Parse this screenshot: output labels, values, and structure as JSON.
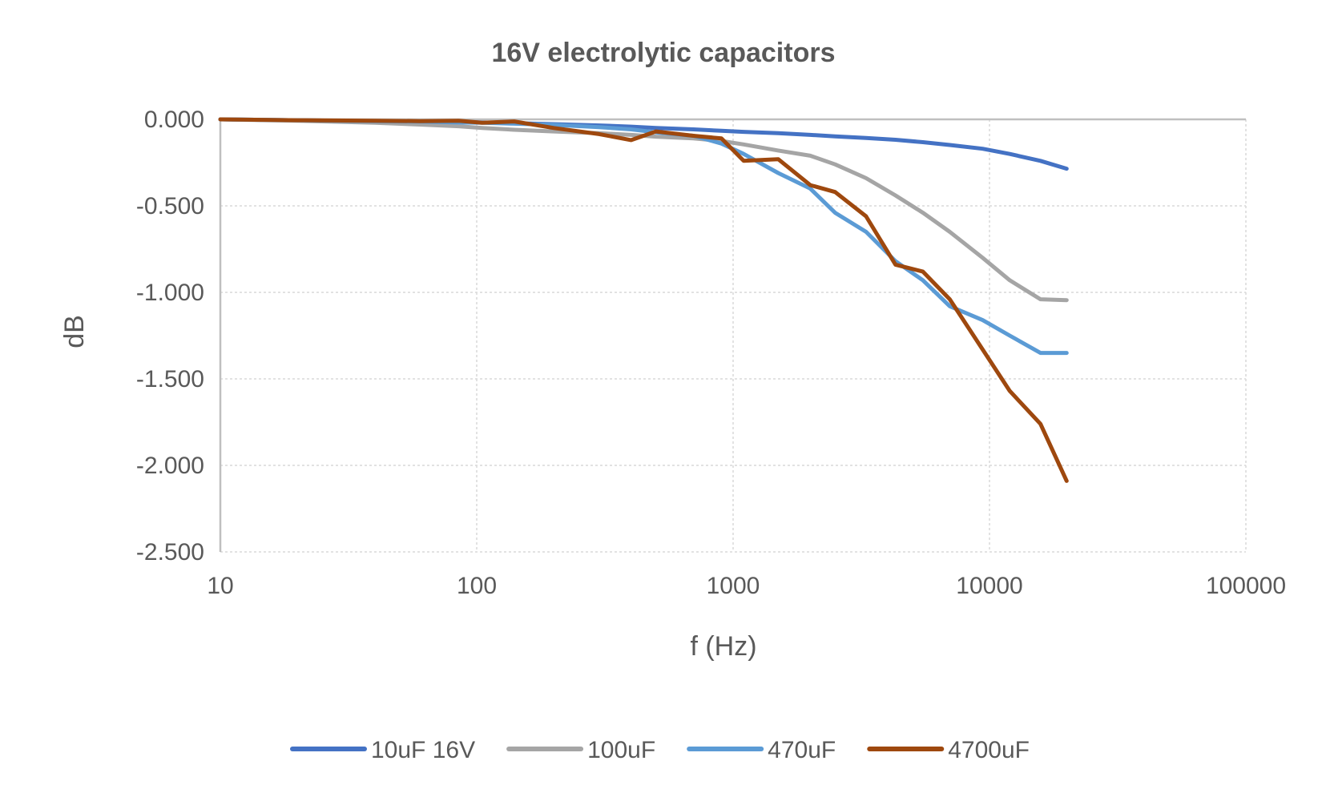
{
  "chart_data": {
    "type": "line",
    "title": "16V electrolytic capacitors",
    "xlabel": "f (Hz)",
    "ylabel": "dB",
    "x_scale": "log",
    "xlim": [
      10,
      100000
    ],
    "ylim": [
      -2.5,
      0
    ],
    "x_ticks": [
      "10",
      "100",
      "1000",
      "10000",
      "100000"
    ],
    "y_ticks": [
      "0.000",
      "-0.500",
      "-1.000",
      "-1.500",
      "-2.000",
      "-2.500"
    ],
    "grid": true,
    "legend_position": "bottom",
    "x": [
      10,
      20,
      40,
      60,
      85,
      105,
      140,
      200,
      300,
      400,
      500,
      700,
      900,
      1100,
      1500,
      2000,
      2500,
      3300,
      4300,
      5500,
      7000,
      9400,
      12000,
      15800,
      20000
    ],
    "series": [
      {
        "name": "10uF 16V",
        "color": "#4472c4",
        "values": [
          0.0,
          -0.005,
          -0.01,
          -0.012,
          -0.015,
          -0.018,
          -0.022,
          -0.028,
          -0.035,
          -0.042,
          -0.05,
          -0.058,
          -0.066,
          -0.072,
          -0.08,
          -0.09,
          -0.098,
          -0.108,
          -0.118,
          -0.132,
          -0.148,
          -0.17,
          -0.2,
          -0.24,
          -0.285
        ]
      },
      {
        "name": "100uF",
        "color": "#a5a5a5",
        "values": [
          0.0,
          -0.008,
          -0.02,
          -0.03,
          -0.04,
          -0.05,
          -0.06,
          -0.07,
          -0.08,
          -0.09,
          -0.1,
          -0.11,
          -0.125,
          -0.145,
          -0.18,
          -0.21,
          -0.26,
          -0.34,
          -0.44,
          -0.54,
          -0.65,
          -0.8,
          -0.93,
          -1.04,
          -1.045
        ]
      },
      {
        "name": "470uF",
        "color": "#5b9bd5",
        "values": [
          0.0,
          -0.005,
          -0.01,
          -0.013,
          -0.018,
          -0.02,
          -0.025,
          -0.032,
          -0.045,
          -0.058,
          -0.075,
          -0.095,
          -0.14,
          -0.2,
          -0.31,
          -0.4,
          -0.54,
          -0.65,
          -0.82,
          -0.93,
          -1.08,
          -1.16,
          -1.25,
          -1.35,
          -1.35
        ]
      },
      {
        "name": "4700uF",
        "color": "#9e480e",
        "values": [
          0.0,
          -0.005,
          -0.008,
          -0.01,
          -0.008,
          -0.02,
          -0.012,
          -0.05,
          -0.085,
          -0.12,
          -0.07,
          -0.095,
          -0.11,
          -0.24,
          -0.23,
          -0.38,
          -0.42,
          -0.56,
          -0.84,
          -0.88,
          -1.04,
          -1.33,
          -1.57,
          -1.76,
          -2.09
        ]
      }
    ]
  }
}
